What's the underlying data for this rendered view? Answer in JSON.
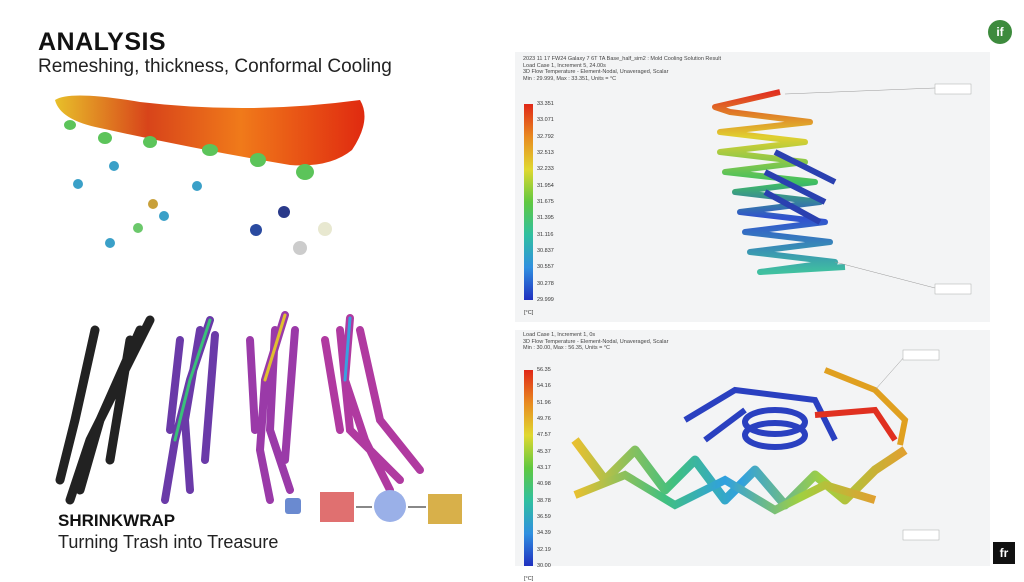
{
  "header": {
    "title": "ANALYSIS",
    "subtitle": "Remeshing, thickness, Conformal Cooling",
    "logo": "if"
  },
  "shrinkwrap": {
    "title": "SHRINKWRAP",
    "subtitle": "Turning Trash into Treasure"
  },
  "panels": [
    {
      "header": [
        "2023 11 17 FW24 Galaxy 7 6T TA Base_half_sim2 : Mold Cooling Solution Result",
        "Load Case 1, Increment 5, 24.00s",
        "3D Flow Temperature - Element-Nodal, Unaveraged, Scalar",
        "Min : 29.999, Max : 33.351, Units = °C"
      ],
      "legend": [
        "33.351",
        "33.071",
        "32.792",
        "32.513",
        "32.233",
        "31.954",
        "31.675",
        "31.395",
        "31.116",
        "30.837",
        "30.557",
        "30.278",
        "29.999"
      ],
      "unit": "[°C]"
    },
    {
      "header": [
        "Load Case 1, Increment 1, 0s",
        "3D Flow Temperature - Element-Nodal, Unaveraged, Scalar",
        "Min : 30.00, Max : 56.35, Units = °C"
      ],
      "legend": [
        "56.35",
        "54.16",
        "51.96",
        "49.76",
        "47.57",
        "45.37",
        "43.17",
        "40.98",
        "38.78",
        "36.59",
        "34.39",
        "32.19",
        "30.00"
      ],
      "unit": "[°C]"
    }
  ],
  "footer_logo": "fr"
}
